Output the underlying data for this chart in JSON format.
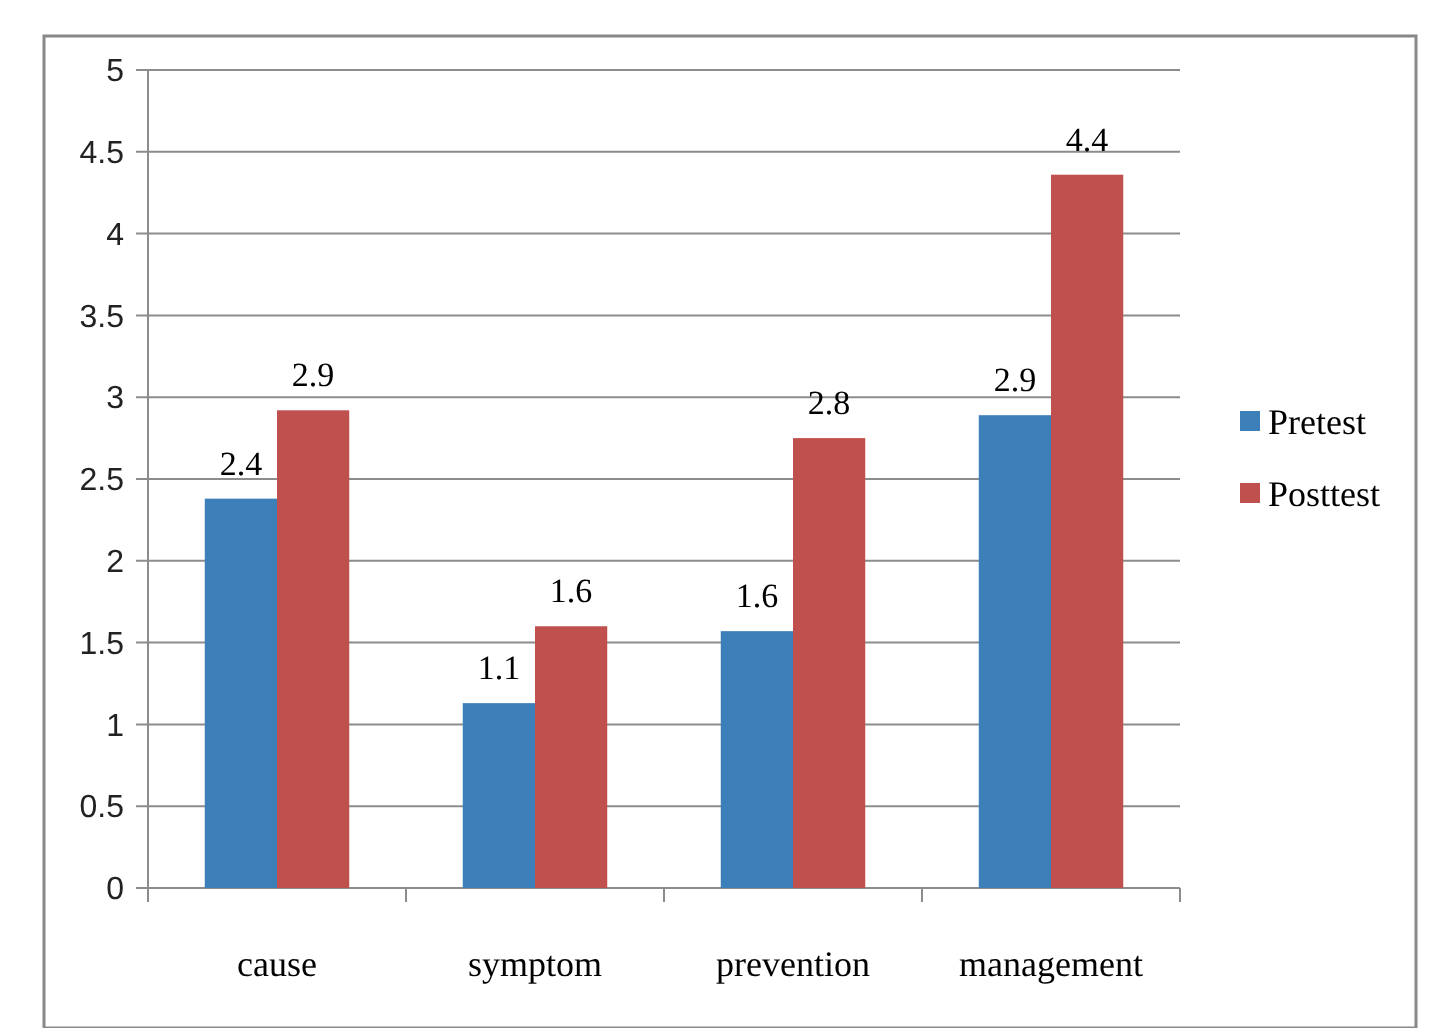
{
  "chart_data": {
    "type": "bar",
    "categories": [
      "cause",
      "symptom",
      "prevention",
      "management"
    ],
    "series": [
      {
        "name": "Pretest",
        "color": "#3d7fb8",
        "values": [
          2.38,
          1.13,
          1.57,
          2.89
        ],
        "value_labels": [
          "2.4",
          "1.1",
          "1.6",
          "2.9"
        ]
      },
      {
        "name": "Posttest",
        "color": "#c0504d",
        "values": [
          2.92,
          1.6,
          2.75,
          4.36
        ],
        "value_labels": [
          "2.9",
          "1.6",
          "2.8",
          "4.4"
        ]
      }
    ],
    "ylim": [
      0,
      5
    ],
    "yticks": [
      0,
      {
        "value": 0.5,
        "label": "0.5"
      },
      1,
      {
        "value": 1.5,
        "label": "1.5"
      },
      2,
      {
        "value": 2.5,
        "label": "2.5"
      },
      3,
      {
        "value": 3.5,
        "label": "3.5"
      },
      4,
      {
        "value": 4.5,
        "label": "4.5"
      },
      5
    ],
    "grid": "y",
    "legend": "right"
  }
}
